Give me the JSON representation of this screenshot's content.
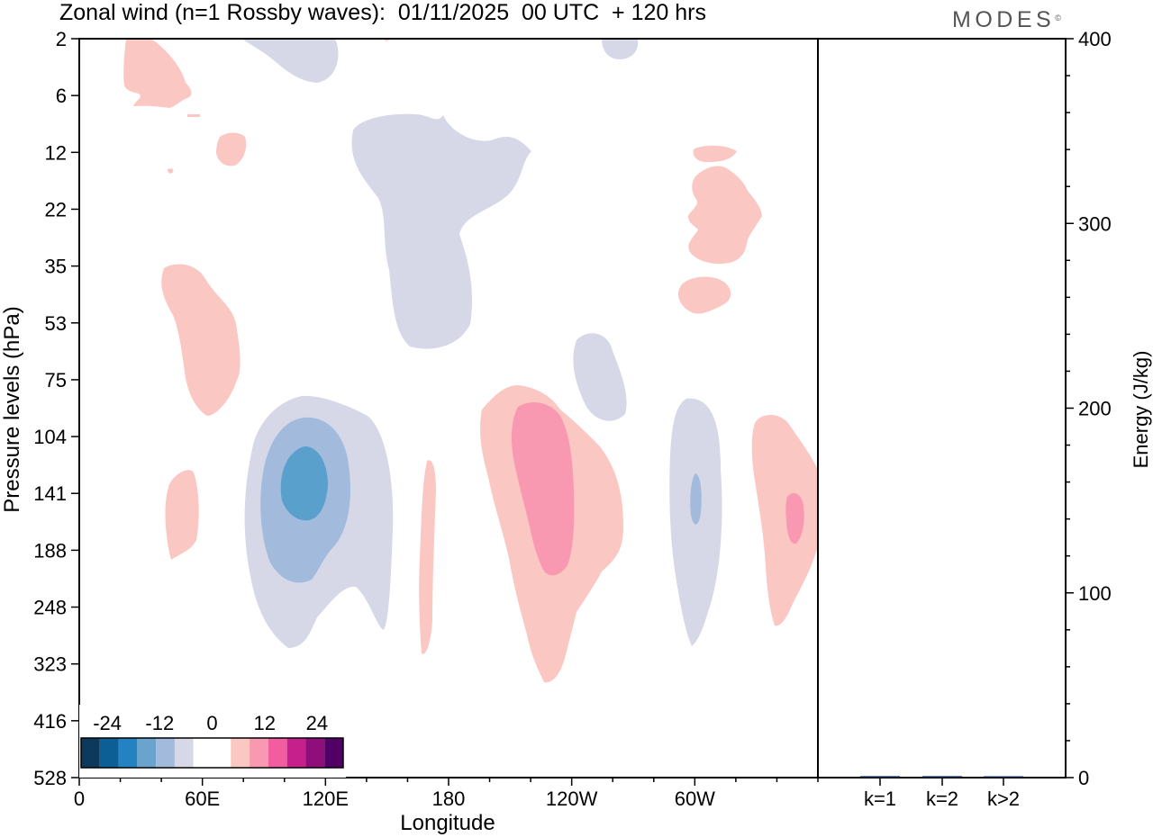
{
  "header": {
    "title": "Zonal wind (n=1 Rossby waves):  01/11/2025  00 UTC  + 120 hrs",
    "brand": "MODES",
    "brand_mark": "©"
  },
  "colors": {
    "neg3": "#5aa0cc",
    "neg2": "#a2badb",
    "neg1": "#d6d8e8",
    "pos1": "#fbc7c3",
    "pos2": "#f999b1",
    "pos3": "#f48ab5",
    "axis": "#000000"
  },
  "chart_data": [
    {
      "type": "heatmap",
      "title": "Zonal wind (n=1 Rossby waves):  01/11/2025  00 UTC  + 120 hrs",
      "xlabel": "Longitude",
      "ylabel": "Pressure levels (hPa)",
      "x_ticks": [
        "0",
        "60E",
        "120E",
        "180",
        "120W",
        "60W"
      ],
      "x_tick_values": [
        0,
        60,
        120,
        180,
        240,
        300
      ],
      "xlim": [
        0,
        360
      ],
      "y_ticks": [
        "2",
        "6",
        "12",
        "22",
        "35",
        "53",
        "75",
        "104",
        "141",
        "188",
        "248",
        "323",
        "416",
        "528"
      ],
      "colorbar": {
        "labels": [
          "-24",
          "-12",
          "0",
          "12",
          "24"
        ],
        "label_values": [
          -24,
          -12,
          0,
          12,
          24
        ],
        "levels": [
          -30,
          -25,
          -20,
          -15,
          -10,
          -5,
          0,
          5,
          10,
          15,
          20,
          25,
          30
        ],
        "colors": [
          "#0d3a5c",
          "#0c5f95",
          "#2383c1",
          "#6aa4cd",
          "#a2badb",
          "#d6d8e8",
          "#ffffff",
          "#ffffff",
          "#fbc7c3",
          "#f999b1",
          "#f15d9f",
          "#c5208c",
          "#8e0e7a",
          "#520066"
        ]
      }
    },
    {
      "type": "bar",
      "categories": [
        "k=1",
        "k=2",
        "k>2"
      ],
      "values": [
        0.8,
        0.8,
        0.6
      ],
      "ylabel": "Energy (J/kg)",
      "ylim": [
        0,
        400
      ],
      "y_ticks": [
        "0",
        "100",
        "200",
        "300",
        "400"
      ],
      "y_tick_values": [
        0,
        100,
        200,
        300,
        400
      ]
    }
  ]
}
